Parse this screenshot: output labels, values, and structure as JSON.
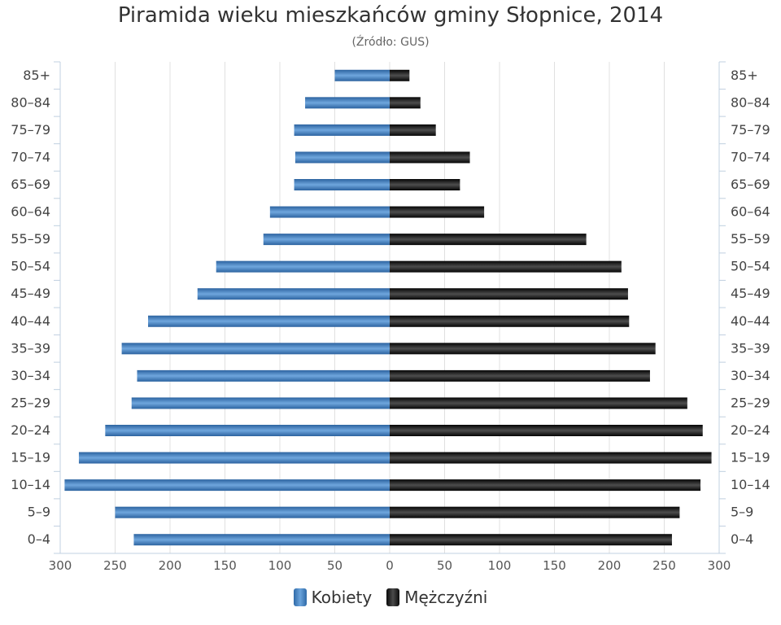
{
  "chart_data": {
    "type": "bar",
    "orientation": "horizontal-population-pyramid",
    "title": "Piramida wieku mieszkańców gminy Słopnice, 2014",
    "subtitle": "(Źródło: GUS)",
    "categories": [
      "85+",
      "80–84",
      "75–79",
      "70–74",
      "65–69",
      "60–64",
      "55–59",
      "50–54",
      "45–49",
      "40–44",
      "35–39",
      "30–34",
      "25–29",
      "20–24",
      "15–19",
      "10–14",
      "5–9",
      "0–4"
    ],
    "series": [
      {
        "name": "Kobiety",
        "color": "#4a86c5",
        "values": [
          50,
          77,
          87,
          86,
          87,
          109,
          115,
          158,
          175,
          220,
          244,
          230,
          235,
          259,
          283,
          296,
          250,
          233
        ]
      },
      {
        "name": "Mężczyźni",
        "color": "#1a1a1a",
        "values": [
          18,
          28,
          42,
          73,
          64,
          86,
          179,
          211,
          217,
          218,
          242,
          237,
          271,
          285,
          293,
          283,
          264,
          257
        ]
      }
    ],
    "x_tick_labels": [
      "300",
      "250",
      "200",
      "150",
      "100",
      "50",
      "0",
      "50",
      "100",
      "150",
      "200",
      "250",
      "300"
    ],
    "xlim": [
      -300,
      300
    ],
    "grid": true,
    "legend": "bottom-center"
  }
}
